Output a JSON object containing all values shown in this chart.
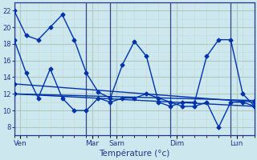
{
  "xlabel": "Température (°c)",
  "background_color": "#cce8ee",
  "grid_color_major": "#b0c8c0",
  "grid_color_minor": "#c8dcd8",
  "line_color": "#0033aa",
  "separator_color": "#334488",
  "day_labels": [
    "Ven",
    "Mar",
    "Sam",
    "Dim",
    "Lun"
  ],
  "day_positions": [
    0.5,
    6.5,
    8.5,
    13.5,
    18.5
  ],
  "separator_positions": [
    0,
    6,
    8,
    13,
    18
  ],
  "xlim": [
    0,
    20
  ],
  "ylim": [
    7,
    23
  ],
  "yticks": [
    8,
    10,
    12,
    14,
    16,
    18,
    20,
    22
  ],
  "series": [
    {
      "x": [
        0,
        1,
        2,
        3,
        4,
        5,
        6,
        7,
        8,
        9,
        10,
        11,
        12,
        13,
        14,
        15,
        16,
        17,
        18,
        19,
        20
      ],
      "y": [
        22,
        19,
        18.5,
        20,
        21.5,
        18.5,
        14.5,
        12.2,
        11.5,
        15.5,
        18.3,
        16.5,
        11,
        10.5,
        11,
        11,
        16.5,
        18.5,
        18.5,
        12,
        10.5
      ],
      "marker": "D",
      "markersize": 2.5,
      "linewidth": 1.0
    },
    {
      "x": [
        0,
        1,
        2,
        3,
        4,
        5,
        6,
        7,
        8,
        9,
        10,
        11,
        12,
        13,
        14,
        15,
        16,
        17,
        18,
        19,
        20
      ],
      "y": [
        18.5,
        14.5,
        11.5,
        15,
        11.5,
        10,
        10,
        11.5,
        11,
        11.5,
        11.5,
        12,
        11.5,
        11,
        10.5,
        10.5,
        11,
        8,
        11,
        11,
        10.5
      ],
      "marker": "D",
      "markersize": 2.5,
      "linewidth": 1.0
    },
    {
      "x": [
        0,
        20
      ],
      "y": [
        13.2,
        11.0
      ],
      "marker": "D",
      "markersize": 2.5,
      "linewidth": 1.0
    },
    {
      "x": [
        0,
        20
      ],
      "y": [
        12.0,
        11.2
      ],
      "marker": "D",
      "markersize": 2.5,
      "linewidth": 1.0
    },
    {
      "x": [
        0,
        20
      ],
      "y": [
        12.0,
        10.5
      ],
      "marker": "D",
      "markersize": 2.5,
      "linewidth": 1.0
    }
  ]
}
